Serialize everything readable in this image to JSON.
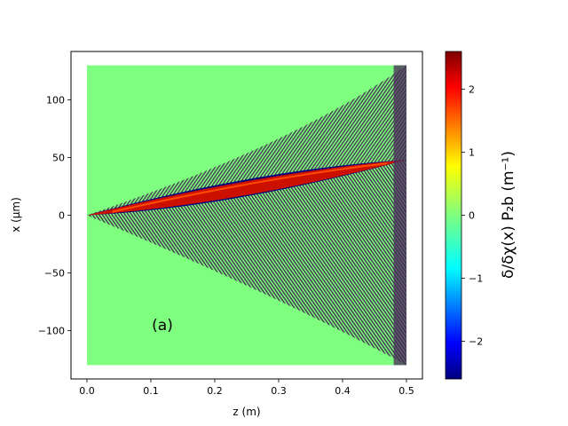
{
  "chart_data": {
    "type": "heatmap",
    "panel_label": "(a)",
    "xlabel": "z (m)",
    "ylabel": "x (μm)",
    "x_ticks": [
      0.0,
      0.1,
      0.2,
      0.3,
      0.4,
      0.5
    ],
    "x_tick_labels": [
      "0.0",
      "0.1",
      "0.2",
      "0.3",
      "0.4",
      "0.5"
    ],
    "y_ticks": [
      100,
      50,
      0,
      -50,
      -100
    ],
    "y_tick_labels": [
      "100",
      "50",
      "0",
      "−50",
      "−100"
    ],
    "xlim": [
      -0.025,
      0.525
    ],
    "ylim": [
      -142,
      142
    ],
    "data_extent": {
      "z": [
        0.0,
        0.5
      ],
      "x": [
        -130,
        130
      ]
    },
    "beam": {
      "start": [
        0.0,
        0.0
      ],
      "end": [
        0.5,
        48
      ],
      "peak_value": 2.5
    },
    "fringe_region": {
      "upper_edge_at_end": 130,
      "lower_edge_at_end": -130
    },
    "background_value": 0,
    "colorbar": {
      "label": "δ/δχ(x) P₂b   (m⁻¹)",
      "range": [
        -2.6,
        2.6
      ],
      "ticks": [
        2,
        1,
        0,
        -1,
        -2
      ],
      "tick_labels": [
        "2",
        "1",
        "0",
        "−1",
        "−2"
      ],
      "colormap": "jet"
    },
    "colors": {
      "background_green": "#7fff7f",
      "beam_red": "#cc1000",
      "fringe_dark": "#3a1a4a",
      "fringe_blue": "#000080"
    }
  }
}
